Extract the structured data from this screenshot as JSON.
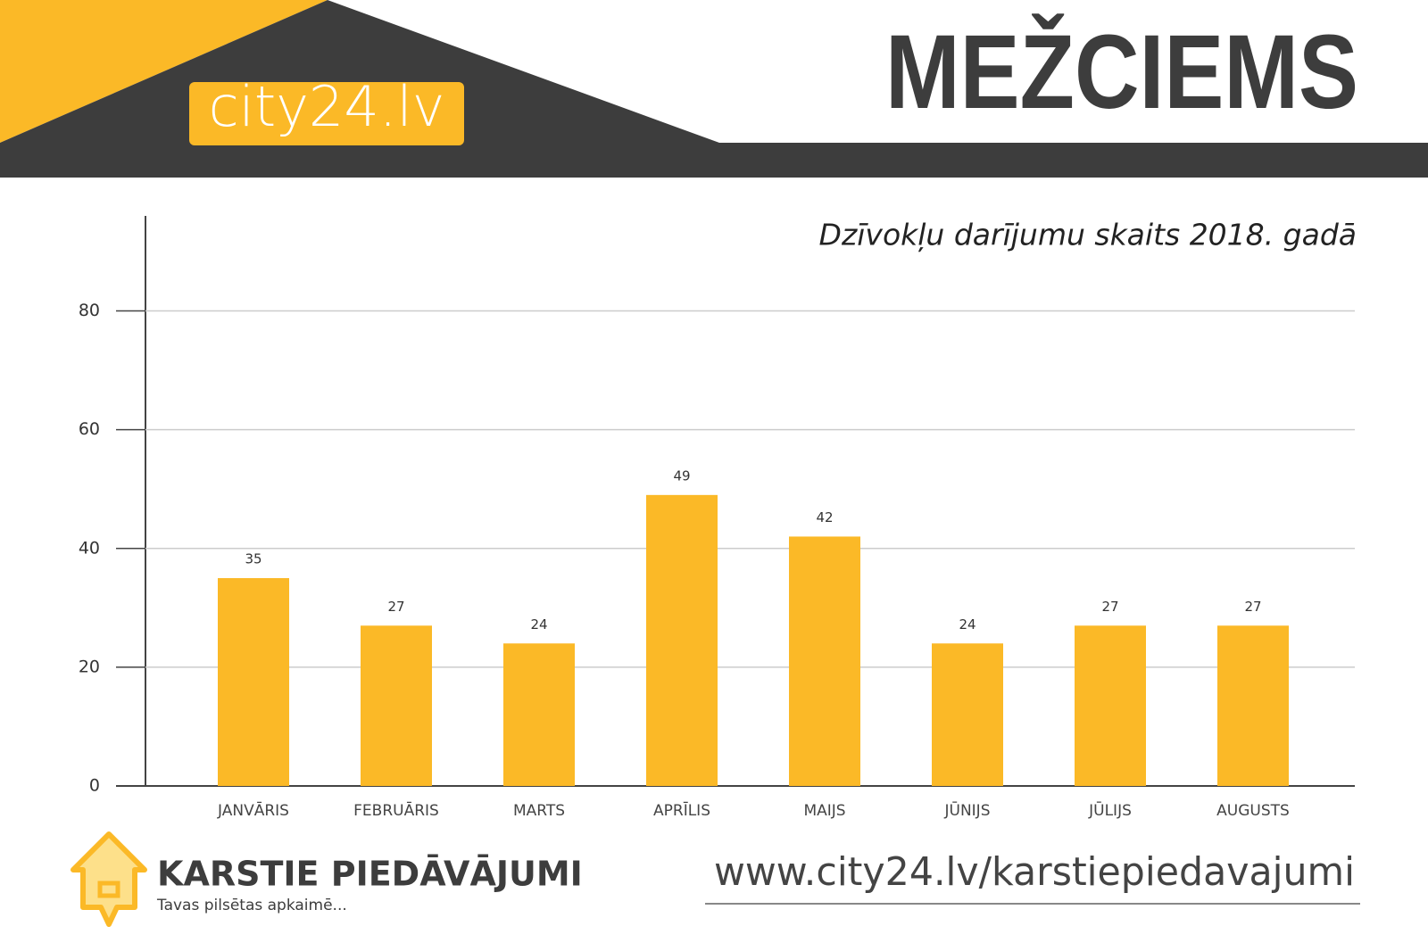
{
  "header": {
    "logo": "city24.lv",
    "title": "MEŽCIEMS"
  },
  "chart_data": {
    "type": "bar",
    "title": "Dzīvokļu darījumu skaits 2018. gadā",
    "categories": [
      "JANVĀRIS",
      "FEBRUĀRIS",
      "MARTS",
      "APRĪLIS",
      "MAIJS",
      "JŪNIJS",
      "JŪLIJS",
      "AUGUSTS"
    ],
    "values": [
      35,
      27,
      24,
      49,
      42,
      24,
      27,
      27
    ],
    "color": "#fbb927",
    "ylim": [
      0,
      96
    ],
    "yticks": [
      0,
      20,
      40,
      60,
      80
    ],
    "grid": true
  },
  "footer": {
    "brand": "KARSTIE PIEDĀVĀJUMI",
    "slogan": "Tavas pilsētas apkaimē...",
    "url": "www.city24.lv/karstiepiedavajumi"
  }
}
